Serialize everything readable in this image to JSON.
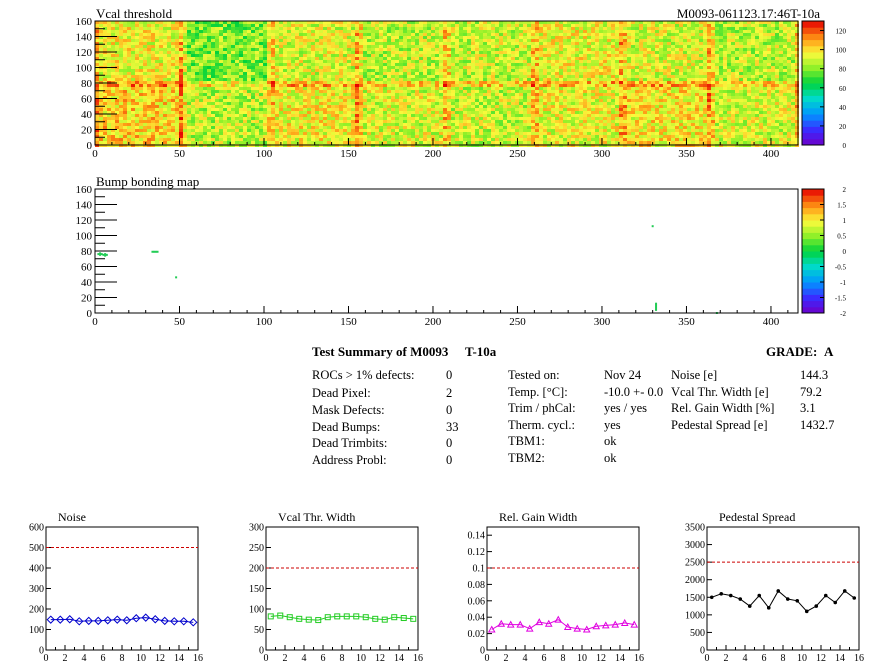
{
  "header": {
    "left_title": "Vcal threshold",
    "right_title": "M0093-061123.17:46T-10a"
  },
  "colors": {
    "noise_series": "#0000cc",
    "vcal_series": "#22cc22",
    "gain_series": "#e000e0",
    "pedestal_series": "#000000",
    "threshold_line": "#cc0000"
  },
  "chart_data": [
    {
      "id": "vcal-threshold-map",
      "type": "heatmap",
      "title": "Vcal threshold",
      "xlim": [
        0,
        416
      ],
      "ylim": [
        0,
        160
      ],
      "xticks": [
        0,
        50,
        100,
        150,
        200,
        250,
        300,
        350,
        400
      ],
      "yticks": [
        0,
        20,
        40,
        60,
        80,
        100,
        120,
        140,
        160
      ],
      "colorbar_range": [
        0,
        130
      ],
      "colorbar_ticks": [
        0,
        20,
        40,
        60,
        80,
        100,
        120
      ],
      "roc_mean_values_top_row": [
        95,
        80,
        92,
        88,
        90,
        95,
        92,
        88
      ],
      "roc_mean_values_bottom_row": [
        102,
        88,
        96,
        92,
        90,
        94,
        98,
        92
      ]
    },
    {
      "id": "bump-bonding-map",
      "type": "scatter",
      "title": "Bump bonding map",
      "xlim": [
        0,
        416
      ],
      "ylim": [
        0,
        160
      ],
      "xticks": [
        0,
        50,
        100,
        150,
        200,
        250,
        300,
        350,
        400
      ],
      "yticks": [
        0,
        20,
        40,
        60,
        80,
        100,
        120,
        140,
        160
      ],
      "colorbar_range": [
        -2,
        2
      ],
      "colorbar_ticks": [
        "2",
        "1.5",
        "1",
        "0.5",
        "0",
        "-0.5",
        "-1",
        "-1.5",
        "-2"
      ],
      "points": [
        {
          "x": 2,
          "y": 76
        },
        {
          "x": 3,
          "y": 75
        },
        {
          "x": 4,
          "y": 76
        },
        {
          "x": 5,
          "y": 75
        },
        {
          "x": 6,
          "y": 76
        },
        {
          "x": 6,
          "y": 74
        },
        {
          "x": 7,
          "y": 75
        },
        {
          "x": 3,
          "y": 77
        },
        {
          "x": 34,
          "y": 79
        },
        {
          "x": 35,
          "y": 79
        },
        {
          "x": 36,
          "y": 79
        },
        {
          "x": 37,
          "y": 79
        },
        {
          "x": 48,
          "y": 46
        },
        {
          "x": 330,
          "y": 112
        },
        {
          "x": 332,
          "y": 10
        },
        {
          "x": 332,
          "y": 8
        },
        {
          "x": 332,
          "y": 6
        },
        {
          "x": 332,
          "y": 4
        },
        {
          "x": 332,
          "y": 12
        },
        {
          "x": 368,
          "y": 0
        }
      ]
    },
    {
      "id": "noise-plot",
      "type": "line",
      "title": "Noise",
      "xlim": [
        0,
        16
      ],
      "ylim": [
        0,
        600
      ],
      "xticks": [
        0,
        2,
        4,
        6,
        8,
        10,
        12,
        14,
        16
      ],
      "yticks": [
        0,
        100,
        200,
        300,
        400,
        500,
        600
      ],
      "threshold": 500,
      "x": [
        0.5,
        1.5,
        2.5,
        3.5,
        4.5,
        5.5,
        6.5,
        7.5,
        8.5,
        9.5,
        10.5,
        11.5,
        12.5,
        13.5,
        14.5,
        15.5
      ],
      "values": [
        148,
        148,
        150,
        140,
        142,
        142,
        145,
        148,
        145,
        155,
        158,
        150,
        142,
        140,
        140,
        135
      ]
    },
    {
      "id": "vcal-width-plot",
      "type": "line",
      "title": "Vcal Thr. Width",
      "xlim": [
        0,
        16
      ],
      "ylim": [
        0,
        300
      ],
      "xticks": [
        0,
        2,
        4,
        6,
        8,
        10,
        12,
        14,
        16
      ],
      "yticks": [
        0,
        50,
        100,
        150,
        200,
        250,
        300
      ],
      "threshold": 200,
      "x": [
        0.5,
        1.5,
        2.5,
        3.5,
        4.5,
        5.5,
        6.5,
        7.5,
        8.5,
        9.5,
        10.5,
        11.5,
        12.5,
        13.5,
        14.5,
        15.5
      ],
      "values": [
        82,
        84,
        80,
        76,
        74,
        73,
        80,
        82,
        82,
        82,
        80,
        76,
        74,
        80,
        78,
        76
      ]
    },
    {
      "id": "gain-width-plot",
      "type": "line",
      "title": "Rel. Gain Width",
      "xlim": [
        0,
        16
      ],
      "ylim": [
        0,
        0.15
      ],
      "xticks": [
        0,
        2,
        4,
        6,
        8,
        10,
        12,
        14,
        16
      ],
      "yticks": [
        "0",
        "0.02",
        "0.04",
        "0.06",
        "0.08",
        "0.1",
        "0.12",
        "0.14"
      ],
      "threshold": 0.1,
      "x": [
        0.5,
        1.5,
        2.5,
        3.5,
        4.5,
        5.5,
        6.5,
        7.5,
        8.5,
        9.5,
        10.5,
        11.5,
        12.5,
        13.5,
        14.5,
        15.5
      ],
      "values": [
        0.025,
        0.032,
        0.031,
        0.031,
        0.026,
        0.034,
        0.032,
        0.037,
        0.028,
        0.026,
        0.025,
        0.029,
        0.03,
        0.031,
        0.033,
        0.031
      ]
    },
    {
      "id": "pedestal-spread-plot",
      "type": "line",
      "title": "Pedestal Spread",
      "xlim": [
        0,
        16
      ],
      "ylim": [
        0,
        3500
      ],
      "xticks": [
        0,
        2,
        4,
        6,
        8,
        10,
        12,
        14,
        16
      ],
      "yticks": [
        0,
        500,
        1000,
        1500,
        2000,
        2500,
        3000,
        3500
      ],
      "threshold": 2500,
      "x": [
        0.5,
        1.5,
        2.5,
        3.5,
        4.5,
        5.5,
        6.5,
        7.5,
        8.5,
        9.5,
        10.5,
        11.5,
        12.5,
        13.5,
        14.5,
        15.5
      ],
      "values": [
        1500,
        1600,
        1550,
        1450,
        1250,
        1550,
        1200,
        1680,
        1450,
        1400,
        1100,
        1250,
        1550,
        1350,
        1680,
        1480
      ]
    }
  ],
  "summary": {
    "title": "Test Summary of M0093",
    "temp_tag": "T-10a",
    "grade_label": "GRADE:",
    "grade_value": "A",
    "col1": [
      {
        "label": "ROCs > 1% defects:",
        "value": "0"
      },
      {
        "label": "Dead Pixel:",
        "value": "2"
      },
      {
        "label": "Mask Defects:",
        "value": "0"
      },
      {
        "label": "Dead Bumps:",
        "value": "33"
      },
      {
        "label": "Dead Trimbits:",
        "value": "0"
      },
      {
        "label": "Address Probl:",
        "value": "0"
      }
    ],
    "col2": [
      {
        "label": "Tested on:",
        "value": "Nov 24"
      },
      {
        "label": "Temp. [°C]:",
        "value": "-10.0 +- 0.0"
      },
      {
        "label": "Trim / phCal:",
        "value": "yes / yes"
      },
      {
        "label": "Therm. cycl.:",
        "value": "yes"
      },
      {
        "label": "TBM1:",
        "value": "ok"
      },
      {
        "label": "TBM2:",
        "value": "ok"
      }
    ],
    "col3": [
      {
        "label": "Noise [e]",
        "value": "144.3"
      },
      {
        "label": "Vcal Thr. Width [e]",
        "value": "79.2"
      },
      {
        "label": "Rel. Gain Width [%]",
        "value": "3.1"
      },
      {
        "label": "Pedestal Spread [e]",
        "value": "1432.7"
      }
    ]
  }
}
